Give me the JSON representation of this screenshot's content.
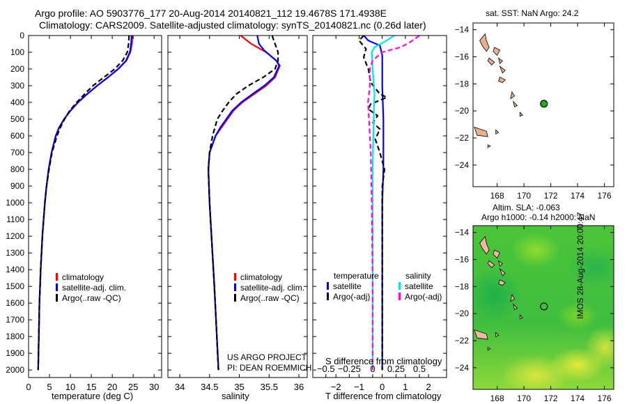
{
  "header": {
    "title_line1": "Argo profile: AO 5903776_177 20-Aug-2014 20140821_112 19.4678S 171.4938E",
    "title_line2": "Climatology: CARS2009. Satellite-adjusted climatology: synTS_20140821.nc (0.26d later)"
  },
  "credits": {
    "line1": "US ARGO PROJECT",
    "line2": "PI: DEAN ROEMMICH",
    "imos": "IMOS 28-Aug-2014 20:00:47"
  },
  "colors": {
    "climatology": "#ff0000",
    "satellite": "#0000ff",
    "argo": "#000000",
    "sal_satellite": "#00e5ee",
    "sal_argo": "#ff00ff"
  },
  "legend_profiles": {
    "climatology": "climatology",
    "satellite": "satellite-adj. clim.",
    "argo": "Argo(..raw -QC)"
  },
  "legend_diff": {
    "temperature": "temperature",
    "salinity": "salinity",
    "t_sat": "satellite",
    "t_argo": "Argo(-adj)",
    "s_sat": "satellite",
    "s_argo": "Argo(-adj)"
  },
  "chart_data": [
    {
      "id": "temperature",
      "type": "line",
      "xlabel": "temperature (deg C)",
      "ylabel": "",
      "xlim": [
        0,
        31.8
      ],
      "ylim": [
        2045,
        0
      ],
      "xticks": [
        0,
        5,
        10,
        15,
        20,
        25,
        30
      ],
      "yticks": [
        0,
        100,
        200,
        300,
        400,
        500,
        600,
        700,
        800,
        900,
        1000,
        1100,
        1200,
        1300,
        1400,
        1500,
        1600,
        1700,
        1800,
        1900,
        2000
      ],
      "series": [
        {
          "name": "climatology",
          "color": "#ff0000",
          "dash": false,
          "points": [
            [
              24.8,
              0
            ],
            [
              24.7,
              50
            ],
            [
              24.3,
              100
            ],
            [
              23.4,
              150
            ],
            [
              21.5,
              200
            ],
            [
              19,
              250
            ],
            [
              16.4,
              300
            ],
            [
              14,
              350
            ],
            [
              11.8,
              400
            ],
            [
              10,
              450
            ],
            [
              8.5,
              500
            ],
            [
              7.3,
              550
            ],
            [
              6.5,
              600
            ],
            [
              5.5,
              700
            ],
            [
              4.8,
              800
            ],
            [
              4.3,
              900
            ],
            [
              3.9,
              1000
            ],
            [
              3.3,
              1200
            ],
            [
              2.9,
              1400
            ],
            [
              2.6,
              1600
            ],
            [
              2.45,
              1800
            ],
            [
              2.3,
              2000
            ]
          ]
        },
        {
          "name": "satellite-adj. clim.",
          "color": "#0000ff",
          "dash": false,
          "points": [
            [
              24.6,
              0
            ],
            [
              24.5,
              50
            ],
            [
              24.2,
              100
            ],
            [
              23.3,
              150
            ],
            [
              21.4,
              200
            ],
            [
              19,
              250
            ],
            [
              16.4,
              300
            ],
            [
              14,
              350
            ],
            [
              11.8,
              400
            ],
            [
              10,
              450
            ],
            [
              8.5,
              500
            ],
            [
              7.3,
              550
            ],
            [
              6.5,
              600
            ],
            [
              5.5,
              700
            ],
            [
              4.8,
              800
            ],
            [
              4.3,
              900
            ],
            [
              3.9,
              1000
            ],
            [
              3.3,
              1200
            ],
            [
              2.9,
              1400
            ],
            [
              2.6,
              1600
            ],
            [
              2.45,
              1800
            ],
            [
              2.3,
              2000
            ]
          ]
        },
        {
          "name": "Argo(..raw -QC)",
          "color": "#000000",
          "dash": true,
          "points": [
            [
              24,
              0
            ],
            [
              23.9,
              50
            ],
            [
              23.6,
              100
            ],
            [
              22.5,
              150
            ],
            [
              20.6,
              200
            ],
            [
              18,
              250
            ],
            [
              15.4,
              300
            ],
            [
              13.4,
              350
            ],
            [
              11.5,
              400
            ],
            [
              9.8,
              450
            ],
            [
              8.6,
              500
            ],
            [
              7.6,
              550
            ],
            [
              6.8,
              600
            ],
            [
              5.6,
              700
            ],
            [
              4.9,
              800
            ],
            [
              4.3,
              900
            ],
            [
              3.9,
              1000
            ],
            [
              3.3,
              1200
            ],
            [
              2.9,
              1400
            ],
            [
              2.6,
              1600
            ],
            [
              2.45,
              1800
            ],
            [
              2.3,
              2000
            ]
          ]
        }
      ]
    },
    {
      "id": "salinity",
      "type": "line",
      "xlabel": "salinity",
      "xlim": [
        33.8,
        36.14
      ],
      "ylim": [
        2045,
        0
      ],
      "xticks": [
        34,
        34.5,
        35,
        35.5,
        36
      ],
      "yticks": [
        0,
        100,
        200,
        300,
        400,
        500,
        600,
        700,
        800,
        900,
        1000,
        1100,
        1200,
        1300,
        1400,
        1500,
        1600,
        1700,
        1800,
        1900,
        2000
      ],
      "series": [
        {
          "name": "climatology",
          "color": "#ff0000",
          "dash": false,
          "points": [
            [
              35.02,
              0
            ],
            [
              35.2,
              50
            ],
            [
              35.45,
              100
            ],
            [
              35.62,
              150
            ],
            [
              35.68,
              180
            ],
            [
              35.6,
              250
            ],
            [
              35.45,
              300
            ],
            [
              35.25,
              350
            ],
            [
              35.05,
              400
            ],
            [
              34.9,
              450
            ],
            [
              34.8,
              500
            ],
            [
              34.7,
              550
            ],
            [
              34.6,
              600
            ],
            [
              34.5,
              700
            ],
            [
              34.48,
              800
            ],
            [
              34.5,
              1000
            ],
            [
              34.58,
              1500
            ],
            [
              34.65,
              2000
            ]
          ]
        },
        {
          "name": "satellite-adj. clim.",
          "color": "#0000ff",
          "dash": false,
          "points": [
            [
              35.3,
              0
            ],
            [
              35.33,
              50
            ],
            [
              35.42,
              90
            ],
            [
              35.62,
              150
            ],
            [
              35.67,
              180
            ],
            [
              35.58,
              250
            ],
            [
              35.42,
              300
            ],
            [
              35.22,
              350
            ],
            [
              35.03,
              400
            ],
            [
              34.88,
              450
            ],
            [
              34.78,
              500
            ],
            [
              34.68,
              550
            ],
            [
              34.6,
              600
            ],
            [
              34.5,
              700
            ],
            [
              34.48,
              800
            ],
            [
              34.5,
              1000
            ],
            [
              34.58,
              1500
            ],
            [
              34.65,
              2000
            ]
          ]
        },
        {
          "name": "Argo(..raw -QC)",
          "color": "#000000",
          "dash": true,
          "points": [
            [
              35.55,
              0
            ],
            [
              35.6,
              50
            ],
            [
              35.65,
              100
            ],
            [
              35.65,
              150
            ],
            [
              35.6,
              200
            ],
            [
              35.4,
              250
            ],
            [
              35.15,
              300
            ],
            [
              34.95,
              350
            ],
            [
              34.82,
              400
            ],
            [
              34.72,
              450
            ],
            [
              34.63,
              500
            ],
            [
              34.55,
              600
            ],
            [
              34.5,
              700
            ],
            [
              34.48,
              800
            ],
            [
              34.5,
              1000
            ],
            [
              34.58,
              1500
            ],
            [
              34.65,
              2000
            ]
          ]
        }
      ]
    },
    {
      "id": "difference",
      "type": "line",
      "xlabel": "T difference from climatology",
      "x2label": "S difference from climatology",
      "xlim": [
        -3,
        2.78
      ],
      "x2lim": [
        -0.64,
        0.79
      ],
      "ylim": [
        2045,
        0
      ],
      "xticks": [
        -2,
        -1,
        0,
        1,
        2
      ],
      "x2ticks": [
        -0.5,
        -0.25,
        0,
        0.25,
        0.5
      ],
      "x2ticklabels": [
        "-0.5",
        "-0.25",
        "0",
        "0.25",
        "0.5"
      ],
      "yticks": [
        0,
        100,
        200,
        300,
        400,
        500,
        600,
        700,
        800,
        900,
        1000,
        1100,
        1200,
        1300,
        1400,
        1500,
        1600,
        1700,
        1800,
        1900,
        2000
      ],
      "series": [
        {
          "name": "temperature satellite",
          "axis": "T",
          "color": "#0000ff",
          "dash": false,
          "points": [
            [
              -0.8,
              0
            ],
            [
              -0.6,
              30
            ],
            [
              -0.1,
              60
            ],
            [
              0,
              120
            ],
            [
              0,
              300
            ],
            [
              0.05,
              500
            ],
            [
              0.05,
              800
            ],
            [
              0,
              1000
            ],
            [
              0,
              2000
            ]
          ]
        },
        {
          "name": "temperature Argo(-adj)",
          "axis": "T",
          "color": "#000000",
          "dash": true,
          "points": [
            [
              -0.8,
              0
            ],
            [
              -1,
              30
            ],
            [
              -0.7,
              80
            ],
            [
              -0.8,
              130
            ],
            [
              -0.6,
              200
            ],
            [
              -0.5,
              280
            ],
            [
              -0.1,
              350
            ],
            [
              0.2,
              370
            ],
            [
              -0.5,
              410
            ],
            [
              -0.6,
              440
            ],
            [
              -0.2,
              480
            ],
            [
              -0.4,
              520
            ],
            [
              -0.1,
              560
            ],
            [
              -0.3,
              620
            ],
            [
              -0.1,
              700
            ],
            [
              0.1,
              800
            ],
            [
              0,
              900
            ],
            [
              0,
              2000
            ]
          ]
        },
        {
          "name": "salinity satellite",
          "axis": "S",
          "color": "#00e5ee",
          "dash": false,
          "points": [
            [
              0.23,
              0
            ],
            [
              0.15,
              30
            ],
            [
              0.02,
              70
            ],
            [
              -0.01,
              100
            ],
            [
              0,
              200
            ],
            [
              0.02,
              350
            ],
            [
              0.01,
              500
            ],
            [
              0,
              800
            ],
            [
              0,
              2000
            ]
          ]
        },
        {
          "name": "salinity Argo(-adj)",
          "axis": "S",
          "color": "#ff00ff",
          "dash": true,
          "points": [
            [
              0.5,
              0
            ],
            [
              0.4,
              40
            ],
            [
              0.3,
              70
            ],
            [
              0.1,
              100
            ],
            [
              0,
              150
            ],
            [
              -0.03,
              200
            ],
            [
              -0.03,
              300
            ],
            [
              -0.05,
              400
            ],
            [
              -0.04,
              500
            ],
            [
              -0.02,
              700
            ],
            [
              -0.01,
              1000
            ],
            [
              0,
              1500
            ],
            [
              0,
              2000
            ]
          ]
        }
      ]
    },
    {
      "id": "sst_map",
      "type": "scatter",
      "title": "sat. SST: NaN Argo: 24.2",
      "xlim": [
        166.2,
        176.7
      ],
      "ylim": [
        -25.6,
        -13.5
      ],
      "xticks": [
        168,
        170,
        172,
        174,
        176
      ],
      "yticks": [
        -14,
        -16,
        -18,
        -20,
        -22,
        -24
      ],
      "float_position": [
        171.49,
        -19.47
      ],
      "float_color": "#22aa22"
    },
    {
      "id": "sla_map",
      "type": "heatmap",
      "title_line1": "Altim. SLA: -0.063",
      "title_line2": "Argo h1000: -0.14 h2000: NaN",
      "xlim": [
        166.2,
        176.7
      ],
      "ylim": [
        -25.6,
        -13.5
      ],
      "xticks": [
        168,
        170,
        172,
        174,
        176
      ],
      "yticks": [
        -14,
        -16,
        -18,
        -20,
        -22,
        -24
      ],
      "float_position": [
        171.49,
        -19.47
      ]
    }
  ],
  "islands": [
    [
      [
        167.1,
        -14.3
      ],
      [
        167.2,
        -14.8
      ],
      [
        167.4,
        -15.3
      ],
      [
        167.2,
        -15.6
      ],
      [
        166.9,
        -15.2
      ],
      [
        166.7,
        -14.8
      ]
    ],
    [
      [
        167.8,
        -15.3
      ],
      [
        168.2,
        -15.5
      ],
      [
        168.0,
        -15.9
      ],
      [
        167.7,
        -15.6
      ]
    ],
    [
      [
        168.1,
        -16.1
      ],
      [
        168.4,
        -16.3
      ],
      [
        168.2,
        -16.5
      ]
    ],
    [
      [
        167.4,
        -16.1
      ],
      [
        167.8,
        -16.4
      ],
      [
        167.6,
        -16.6
      ],
      [
        167.3,
        -16.3
      ]
    ],
    [
      [
        168.2,
        -16.7
      ],
      [
        168.6,
        -17.0
      ],
      [
        168.4,
        -17.2
      ]
    ],
    [
      [
        168.2,
        -17.5
      ],
      [
        168.6,
        -17.7
      ],
      [
        168.4,
        -17.9
      ],
      [
        168.1,
        -17.8
      ]
    ],
    [
      [
        169.1,
        -18.6
      ],
      [
        169.3,
        -18.9
      ],
      [
        169.0,
        -19.1
      ]
    ],
    [
      [
        169.2,
        -19.3
      ],
      [
        169.5,
        -19.6
      ],
      [
        169.3,
        -19.7
      ]
    ],
    [
      [
        169.7,
        -20.1
      ],
      [
        169.9,
        -20.3
      ],
      [
        169.7,
        -20.4
      ]
    ],
    [
      [
        166.3,
        -21.2
      ],
      [
        167.2,
        -21.5
      ],
      [
        167.3,
        -21.9
      ],
      [
        166.5,
        -21.8
      ]
    ],
    [
      [
        167.9,
        -21.4
      ],
      [
        168.1,
        -21.6
      ],
      [
        167.9,
        -21.7
      ]
    ],
    [
      [
        167.3,
        -22.5
      ],
      [
        167.5,
        -22.6
      ],
      [
        167.3,
        -22.7
      ]
    ]
  ]
}
